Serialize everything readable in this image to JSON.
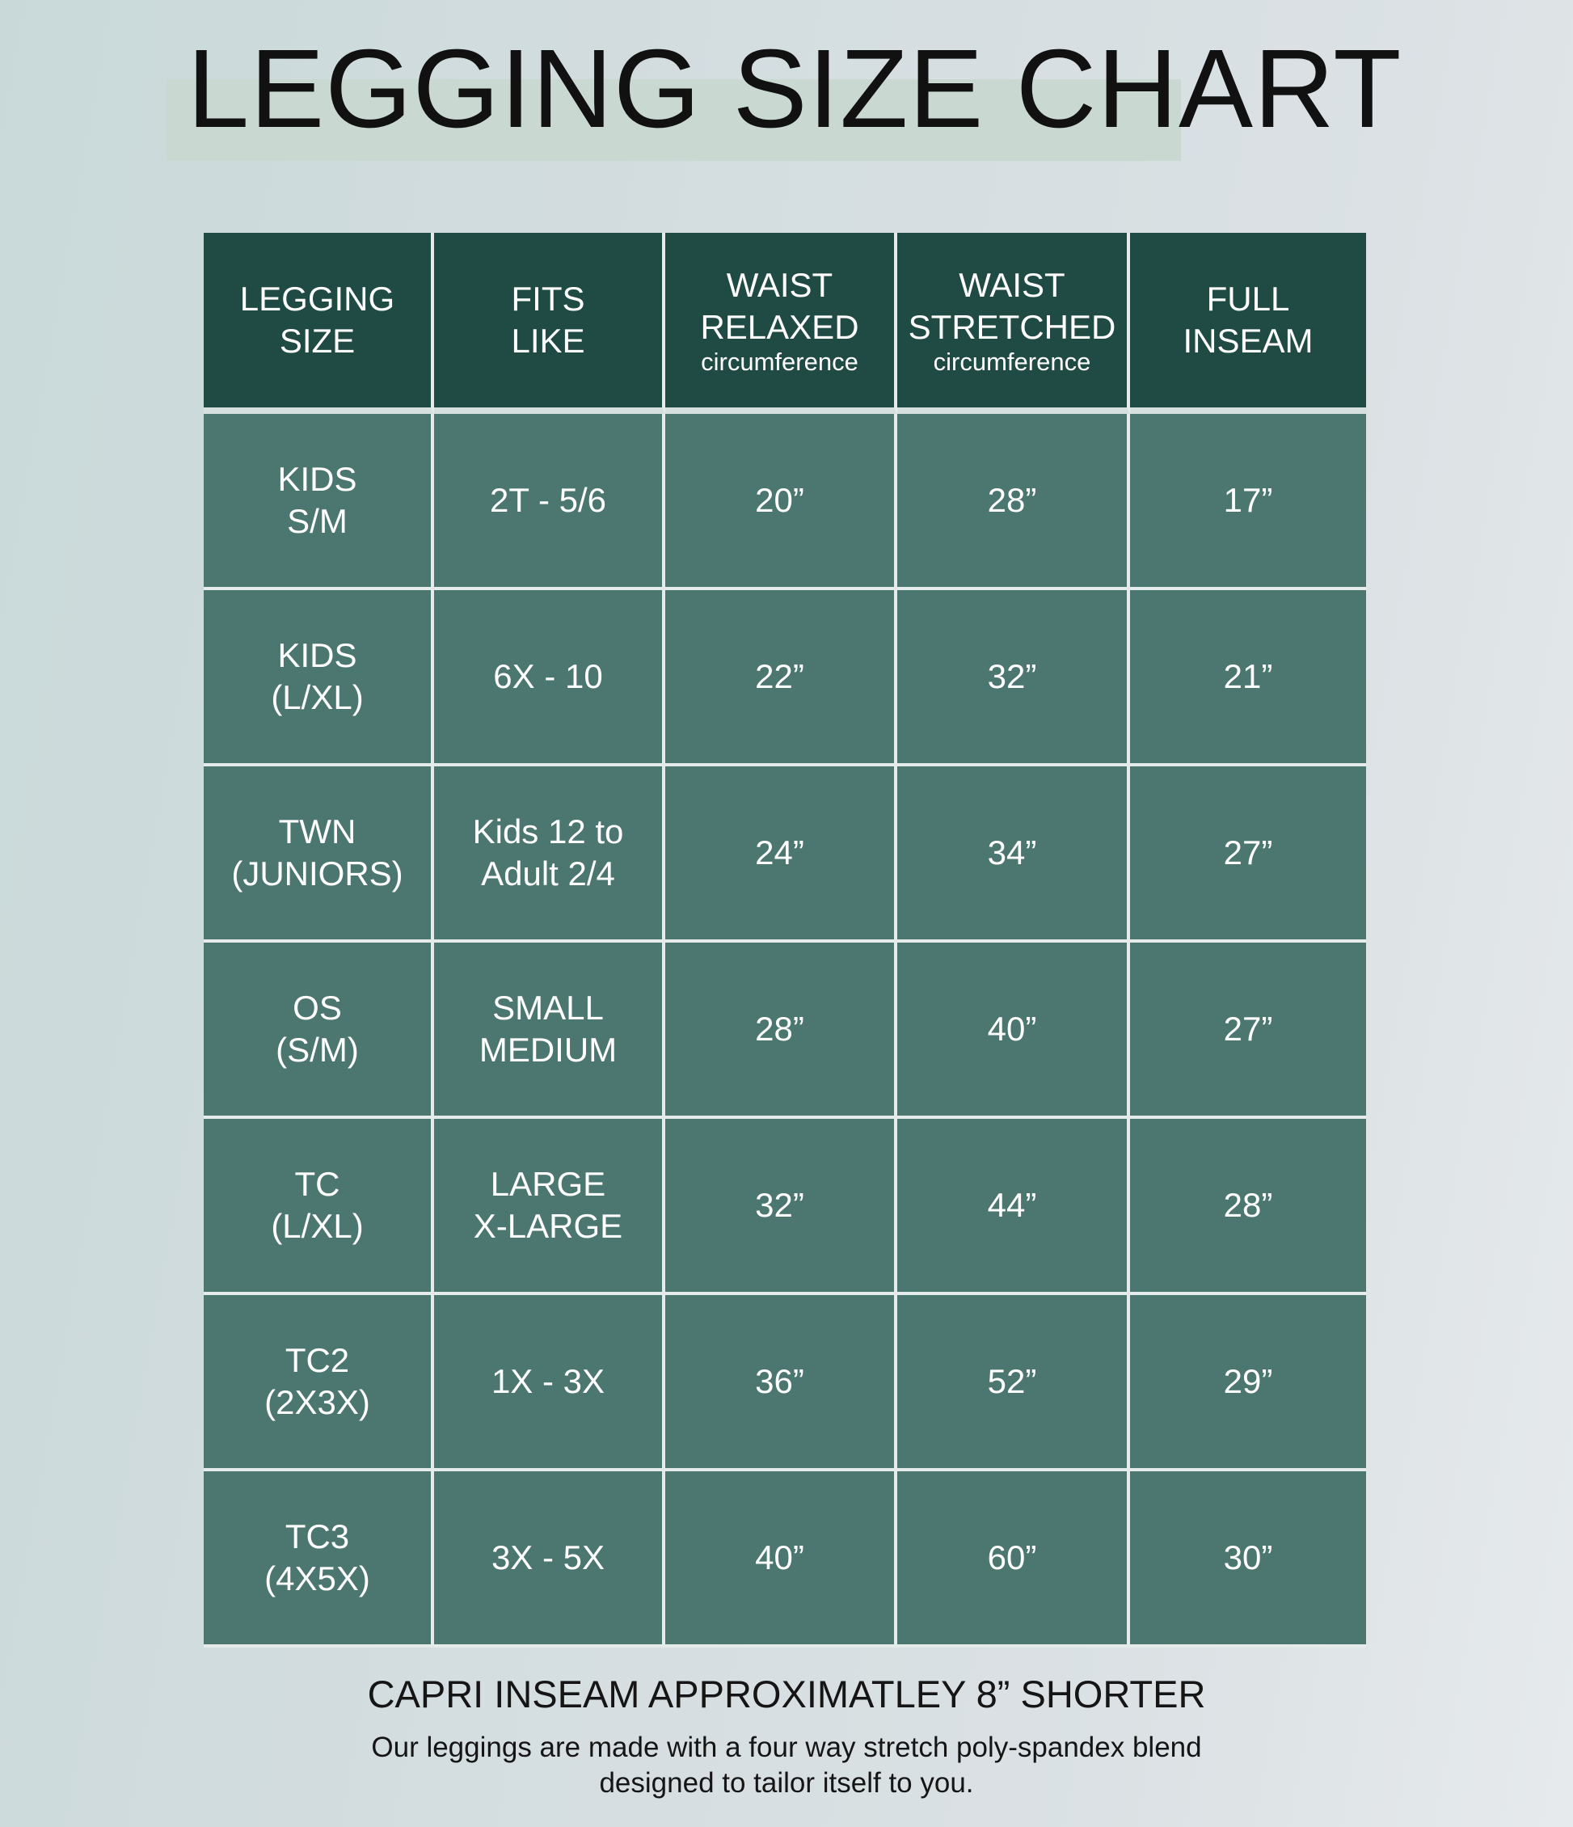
{
  "title": "LEGGING SIZE CHART",
  "colors": {
    "header_bg": "#1f4b44",
    "body_bg": "#4b7770",
    "highlight": "#c9d9d1",
    "text_on_table": "#ffffff"
  },
  "headers": [
    {
      "main": [
        "LEGGING",
        "SIZE"
      ],
      "sub": ""
    },
    {
      "main": [
        "FITS",
        "LIKE"
      ],
      "sub": ""
    },
    {
      "main": [
        "WAIST",
        "RELAXED"
      ],
      "sub": "circumference"
    },
    {
      "main": [
        "WAIST",
        "STRETCHED"
      ],
      "sub": "circumference"
    },
    {
      "main": [
        "FULL",
        "INSEAM"
      ],
      "sub": ""
    }
  ],
  "rows": [
    {
      "size": [
        "KIDS",
        "S/M"
      ],
      "fits": [
        "2T - 5/6"
      ],
      "relaxed": "20”",
      "stretched": "28”",
      "inseam": "17”"
    },
    {
      "size": [
        "KIDS",
        "(L/XL)"
      ],
      "fits": [
        "6X - 10"
      ],
      "relaxed": "22”",
      "stretched": "32”",
      "inseam": "21”"
    },
    {
      "size": [
        "TWN",
        "(JUNIORS)"
      ],
      "fits": [
        "Kids 12 to",
        "Adult 2/4"
      ],
      "relaxed": "24”",
      "stretched": "34”",
      "inseam": "27”"
    },
    {
      "size": [
        "OS",
        "(S/M)"
      ],
      "fits": [
        "SMALL",
        "MEDIUM"
      ],
      "relaxed": "28”",
      "stretched": "40”",
      "inseam": "27”"
    },
    {
      "size": [
        "TC",
        "(L/XL)"
      ],
      "fits": [
        "LARGE",
        "X-LARGE"
      ],
      "relaxed": "32”",
      "stretched": "44”",
      "inseam": "28”"
    },
    {
      "size": [
        "TC2",
        "(2X3X)"
      ],
      "fits": [
        "1X - 3X"
      ],
      "relaxed": "36”",
      "stretched": "52”",
      "inseam": "29”"
    },
    {
      "size": [
        "TC3",
        "(4X5X)"
      ],
      "fits": [
        "3X - 5X"
      ],
      "relaxed": "40”",
      "stretched": "60”",
      "inseam": "30”"
    }
  ],
  "note": "CAPRI INSEAM APPROXIMATLEY 8” SHORTER",
  "description": [
    "Our leggings are made with a four way stretch poly-spandex blend",
    "designed to tailor itself to you."
  ]
}
